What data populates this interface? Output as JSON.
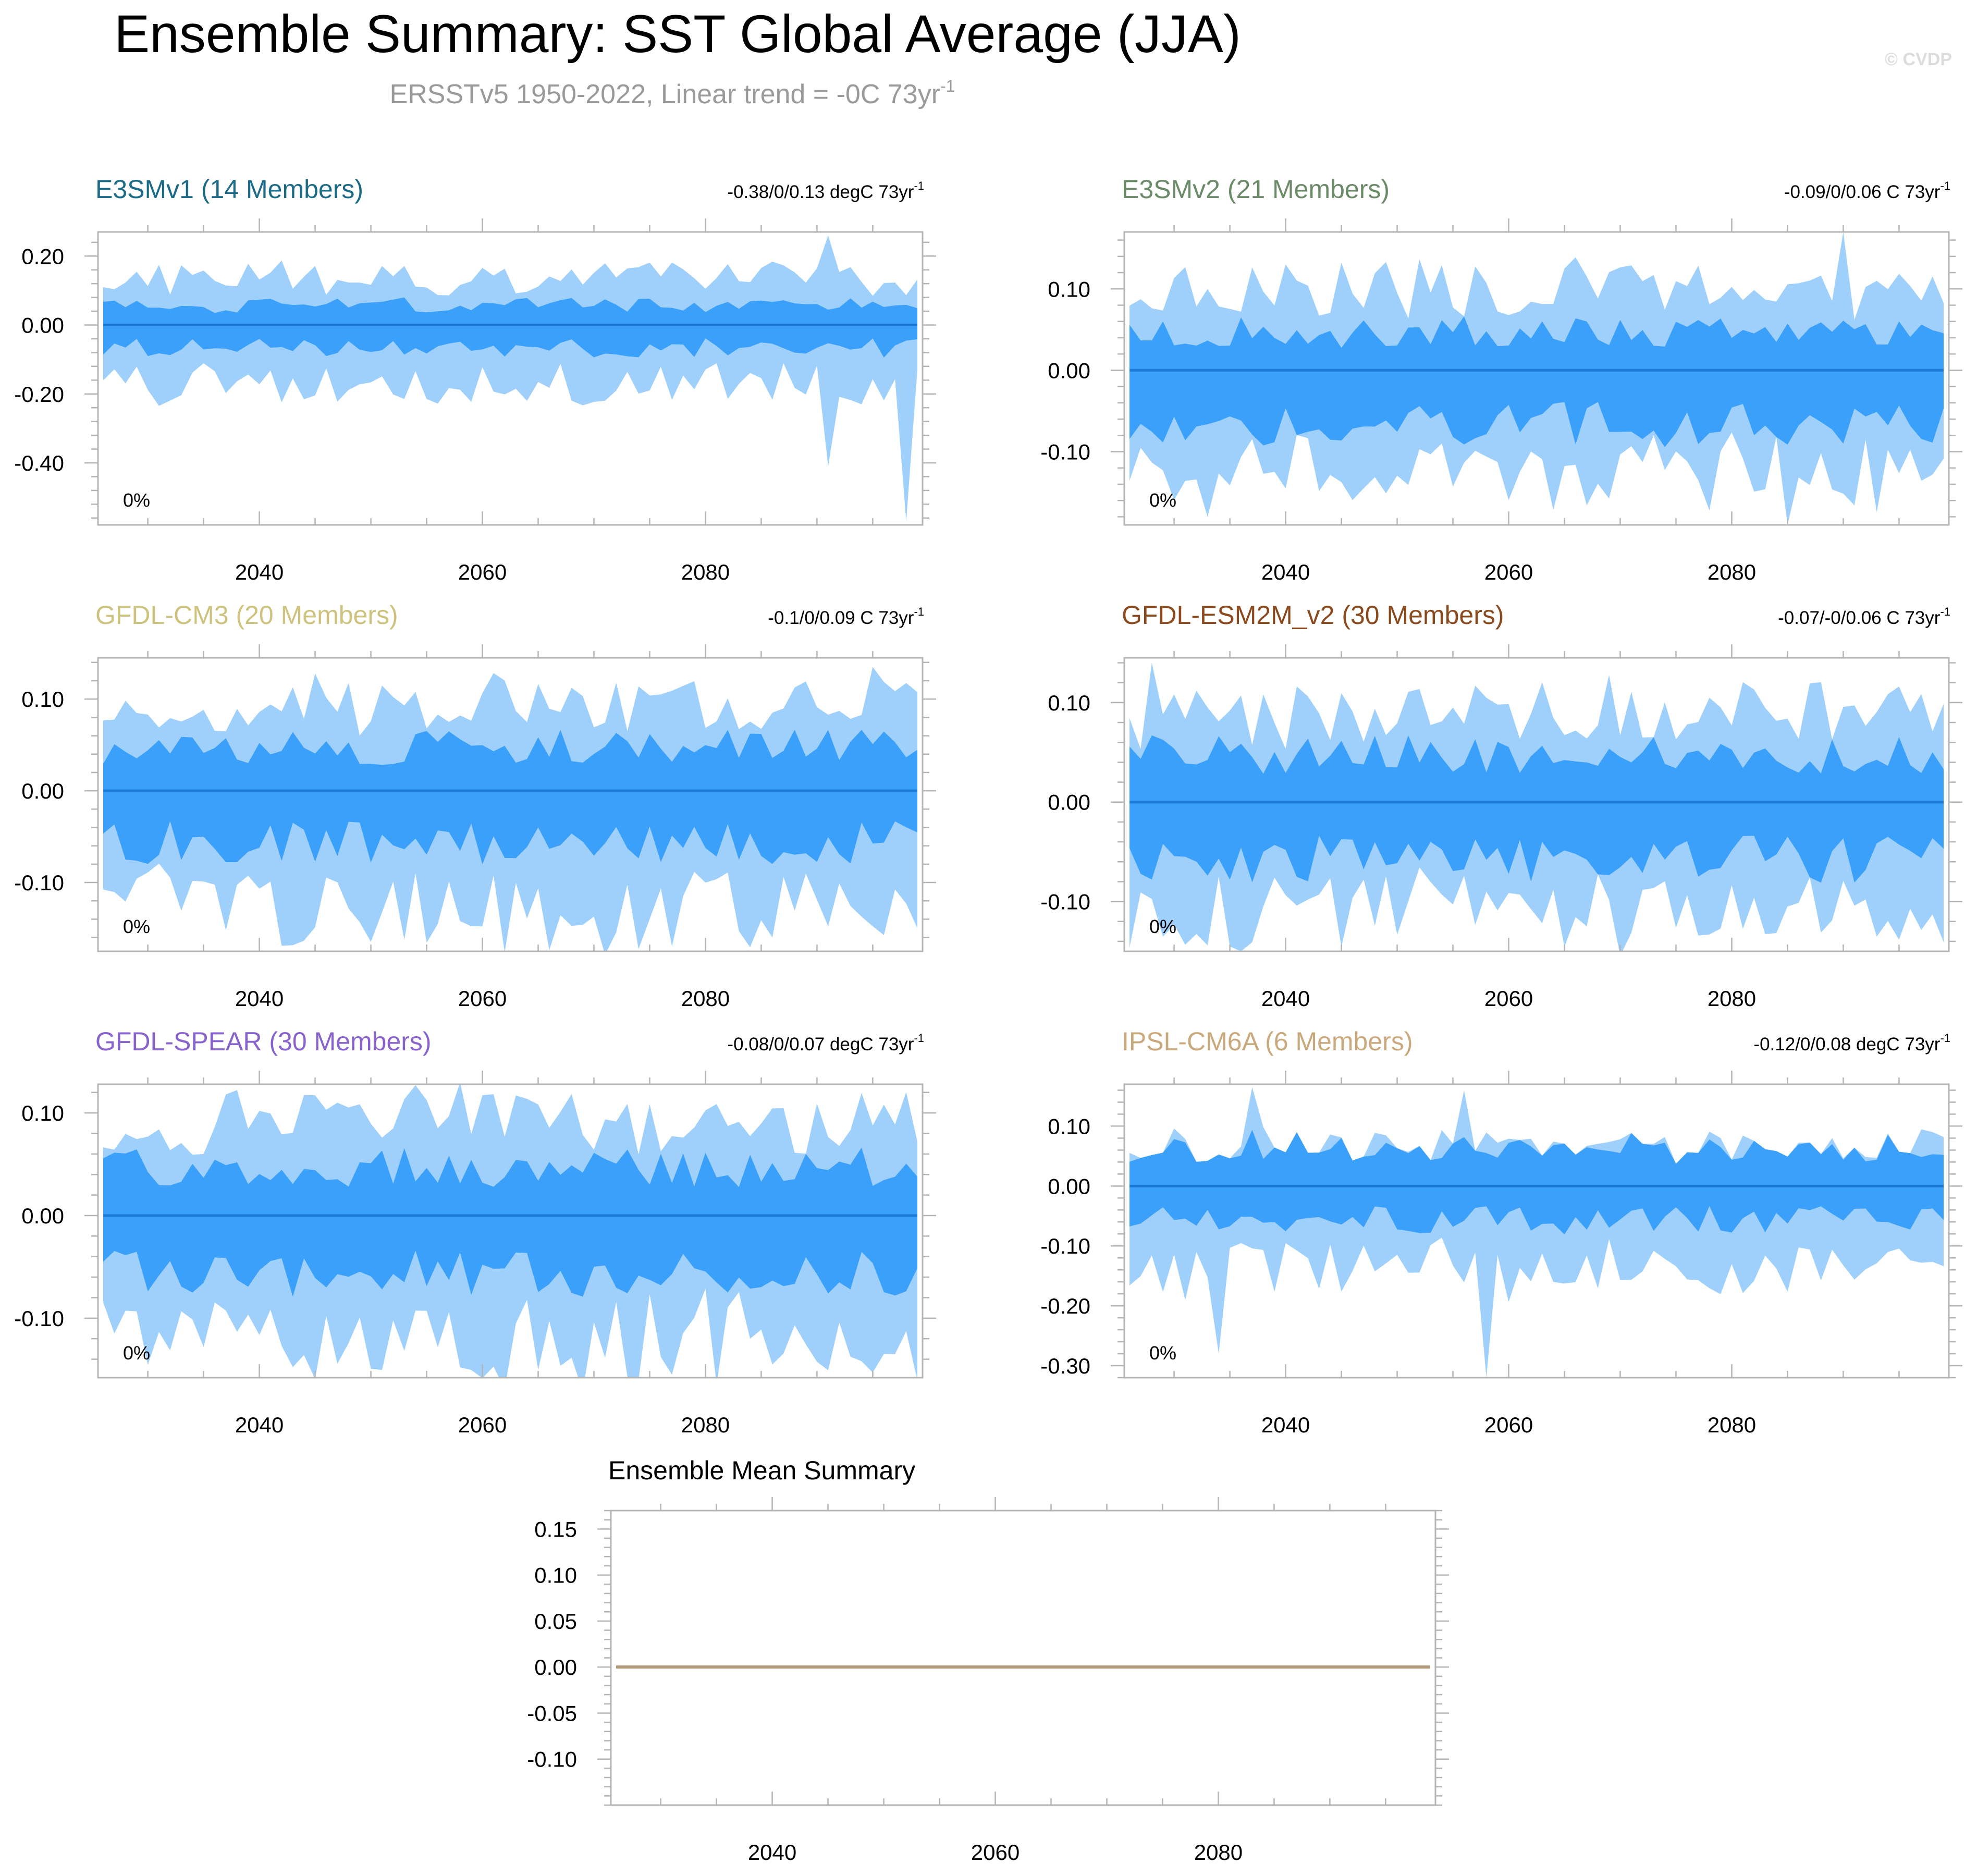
{
  "title": "Ensemble Summary: SST Global Average (JJA)",
  "subtitle": {
    "main": "ERSSTv5 1950-2022, Linear trend = -0C 73yr",
    "sup": "-1"
  },
  "watermark": "© CVDP",
  "colors": {
    "outer_band": "#9fd0fc",
    "inner_band": "#3aa0fa",
    "zero_line": "#1c7ad6",
    "mean_line": "#b29a78",
    "axis": "#b4b4b4",
    "subtitle": "#9a9a9a"
  },
  "chart_data": [
    {
      "type": "area",
      "title": "E3SMv1 (14 Members)",
      "title_color": "#1b6a87",
      "trend_text": "-0.38/0/0.13 degC 73yr",
      "trend_sup": "-1",
      "corner_label": "0%",
      "xlim": [
        2026,
        2099
      ],
      "x_ticks": [
        2040,
        2060,
        2080
      ],
      "ylim": [
        -0.58,
        0.27
      ],
      "y_ticks": [
        0.2,
        0,
        -0.2,
        -0.4
      ],
      "y_tick_labels": [
        "0.20",
        "0.00",
        "-0.20",
        "-0.40"
      ],
      "band_seed": 11,
      "band": {
        "outer_hi": 0.14,
        "outer_lo": -0.17,
        "inner_hi": 0.06,
        "inner_lo": -0.07,
        "spikes_lo": [
          [
            2091,
            -0.41
          ],
          [
            2098,
            -0.57
          ]
        ],
        "spikes_hi": [
          [
            2091,
            0.26
          ]
        ]
      }
    },
    {
      "type": "area",
      "title": "E3SMv2 (21 Members)",
      "title_color": "#6b8b68",
      "trend_text": "-0.09/0/0.06 C 73yr",
      "trend_sup": "-1",
      "corner_label": "0%",
      "xlim": [
        2026,
        2099
      ],
      "x_ticks": [
        2040,
        2060,
        2080
      ],
      "ylim": [
        -0.19,
        0.17
      ],
      "y_ticks": [
        0.1,
        0,
        -0.1
      ],
      "y_tick_labels": [
        "0.10",
        "0.00",
        "-0.10"
      ],
      "band_seed": 23,
      "band": {
        "outer_hi": 0.1,
        "outer_lo": -0.13,
        "inner_hi": 0.05,
        "inner_lo": -0.07,
        "spikes_lo": [
          [
            2085,
            -0.19
          ]
        ],
        "spikes_hi": [
          [
            2090,
            0.17
          ]
        ]
      }
    },
    {
      "type": "area",
      "title": "GFDL-CM3 (20 Members)",
      "title_color": "#cdc37e",
      "trend_text": "-0.1/0/0.09 C 73yr",
      "trend_sup": "-1",
      "corner_label": "0%",
      "xlim": [
        2026,
        2099
      ],
      "x_ticks": [
        2040,
        2060,
        2080
      ],
      "ylim": [
        -0.175,
        0.145
      ],
      "y_ticks": [
        0.1,
        0,
        -0.1
      ],
      "y_tick_labels": [
        "0.10",
        "0.00",
        "-0.10"
      ],
      "band_seed": 37,
      "band": {
        "outer_hi": 0.09,
        "outer_lo": -0.13,
        "inner_hi": 0.05,
        "inner_lo": -0.06,
        "spikes_lo": [
          [
            2077,
            -0.17
          ]
        ],
        "spikes_hi": [
          [
            2095,
            0.135
          ]
        ]
      }
    },
    {
      "type": "area",
      "title": "GFDL-ESM2M_v2 (30 Members)",
      "title_color": "#8b4a1e",
      "trend_text": "-0.07/-0/0.06 C 73yr",
      "trend_sup": "-1",
      "corner_label": "0%",
      "xlim": [
        2026,
        2099
      ],
      "x_ticks": [
        2040,
        2060,
        2080
      ],
      "ylim": [
        -0.15,
        0.145
      ],
      "y_ticks": [
        0.1,
        0,
        -0.1
      ],
      "y_tick_labels": [
        "0.10",
        "0.00",
        "-0.10"
      ],
      "band_seed": 41,
      "band": {
        "outer_hi": 0.09,
        "outer_lo": -0.11,
        "inner_hi": 0.05,
        "inner_lo": -0.06,
        "spikes_lo": [
          [
            2036,
            -0.15
          ]
        ],
        "spikes_hi": [
          [
            2028,
            0.14
          ]
        ]
      }
    },
    {
      "type": "area",
      "title": "GFDL-SPEAR (30 Members)",
      "title_color": "#8863cc",
      "trend_text": "-0.08/0/0.07 degC 73yr",
      "trend_sup": "-1",
      "corner_label": "0%",
      "xlim": [
        2026,
        2099
      ],
      "x_ticks": [
        2040,
        2060,
        2080
      ],
      "ylim": [
        -0.158,
        0.128
      ],
      "y_ticks": [
        0.1,
        0,
        -0.1
      ],
      "y_tick_labels": [
        "0.10",
        "0.00",
        "-0.10"
      ],
      "band_seed": 53,
      "band": {
        "outer_hi": 0.09,
        "outer_lo": -0.12,
        "inner_hi": 0.05,
        "inner_lo": -0.06,
        "spikes_lo": [
          [
            2077,
            -0.155
          ]
        ],
        "spikes_hi": []
      }
    },
    {
      "type": "area",
      "title": "IPSL-CM6A (6 Members)",
      "title_color": "#c9a87c",
      "trend_text": "-0.12/0/0.08 degC 73yr",
      "trend_sup": "-1",
      "corner_label": "0%",
      "xlim": [
        2026,
        2099
      ],
      "x_ticks": [
        2040,
        2060,
        2080
      ],
      "ylim": [
        -0.32,
        0.17
      ],
      "y_ticks": [
        0.1,
        0,
        -0.1,
        -0.2,
        -0.3
      ],
      "y_tick_labels": [
        "0.10",
        "0.00",
        "-0.10",
        "-0.20",
        "-0.30"
      ],
      "band_seed": 67,
      "band": {
        "outer_hi": 0.07,
        "outer_lo": -0.14,
        "inner_hi": 0.07,
        "inner_lo": -0.06,
        "spikes_lo": [
          [
            2058,
            -0.32
          ],
          [
            2034,
            -0.28
          ]
        ],
        "spikes_hi": [
          [
            2037,
            0.165
          ],
          [
            2056,
            0.16
          ]
        ]
      }
    },
    {
      "type": "line",
      "title": "Ensemble Mean Summary",
      "title_color": "#000000",
      "xlim": [
        2026,
        2099
      ],
      "x_ticks": [
        2040,
        2060,
        2080
      ],
      "ylim": [
        -0.15,
        0.17
      ],
      "y_ticks": [
        0.15,
        0.1,
        0.05,
        0,
        -0.05,
        -0.1
      ],
      "y_tick_labels": [
        "0.15",
        "0.10",
        "0.05",
        "0.00",
        "-0.05",
        "-0.10"
      ],
      "series": [
        {
          "name": "ensemble mean",
          "x": [
            2026,
            2099
          ],
          "values": [
            0,
            0
          ]
        }
      ]
    }
  ]
}
